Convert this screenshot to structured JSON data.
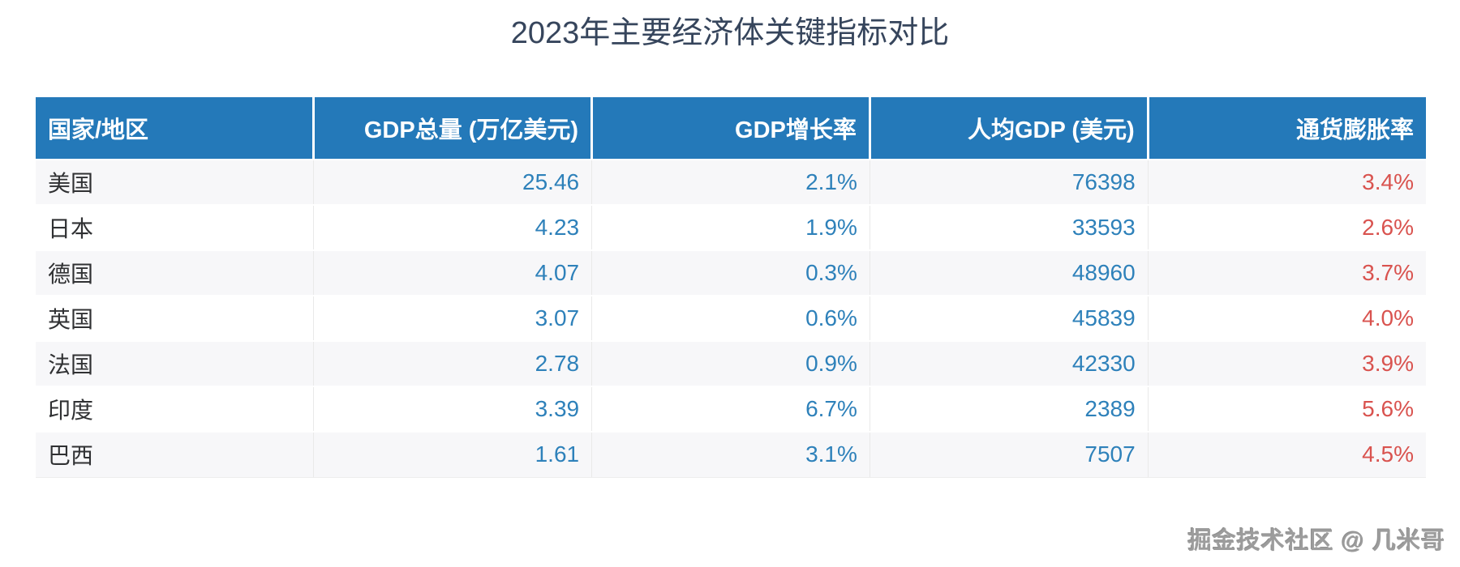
{
  "title": "2023年主要经济体关键指标对比",
  "watermark": "掘金技术社区 @ 几米哥",
  "colors": {
    "header_bg": "#2479b9",
    "header_text": "#ffffff",
    "value_blue": "#2e81ba",
    "inflation_red": "#d9534f",
    "country_text": "#303133",
    "title_text": "#36455c",
    "row_alt_bg": "#f7f7f9",
    "watermark_gray": "#9c9c9c"
  },
  "chart_data": {
    "type": "table",
    "title": "2023年主要经济体关键指标对比",
    "columns": [
      "国家/地区",
      "GDP总量 (万亿美元)",
      "GDP增长率",
      "人均GDP (美元)",
      "通货膨胀率"
    ],
    "column_alignments": [
      "left",
      "right",
      "right",
      "right",
      "right"
    ],
    "rows": [
      {
        "cells": [
          "美国",
          "25.46",
          "2.1%",
          "76398",
          "3.4%"
        ]
      },
      {
        "cells": [
          "日本",
          "4.23",
          "1.9%",
          "33593",
          "2.6%"
        ]
      },
      {
        "cells": [
          "德国",
          "4.07",
          "0.3%",
          "48960",
          "3.7%"
        ]
      },
      {
        "cells": [
          "英国",
          "3.07",
          "0.6%",
          "45839",
          "4.0%"
        ]
      },
      {
        "cells": [
          "法国",
          "2.78",
          "0.9%",
          "42330",
          "3.9%"
        ]
      },
      {
        "cells": [
          "印度",
          "3.39",
          "6.7%",
          "2389",
          "5.6%"
        ]
      },
      {
        "cells": [
          "巴西",
          "1.61",
          "3.1%",
          "7507",
          "4.5%"
        ]
      }
    ]
  }
}
